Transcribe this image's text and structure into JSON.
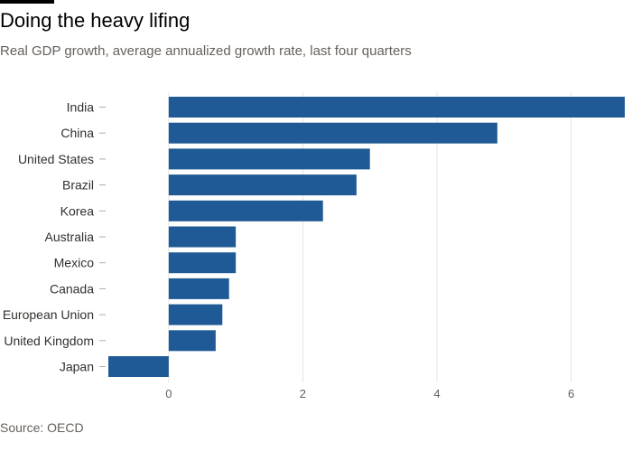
{
  "header": {
    "title": "Doing the heavy lifing",
    "subtitle": "Real GDP growth, average annualized growth rate, last four quarters"
  },
  "footer": {
    "source": "Source: OECD"
  },
  "colors": {
    "bar": "#1f5a96",
    "grid": "#e6e4e2",
    "axis_text": "#66605c",
    "label_text": "#33302e"
  },
  "chart_data": {
    "type": "bar",
    "orientation": "horizontal",
    "title": "Doing the heavy lifing",
    "subtitle": "Real GDP growth, average annualized growth rate, last four quarters",
    "categories": [
      "India",
      "China",
      "United States",
      "Brazil",
      "Korea",
      "Australia",
      "Mexico",
      "Canada",
      "European Union",
      "United Kingdom",
      "Japan"
    ],
    "values": [
      6.8,
      4.9,
      3.0,
      2.8,
      2.3,
      1.0,
      1.0,
      0.9,
      0.8,
      0.7,
      -0.9
    ],
    "xlim": [
      -0.9,
      6.8
    ],
    "xticks": [
      0,
      2,
      4,
      6
    ],
    "xlabel": "",
    "ylabel": "",
    "grid": true,
    "legend": "none"
  }
}
